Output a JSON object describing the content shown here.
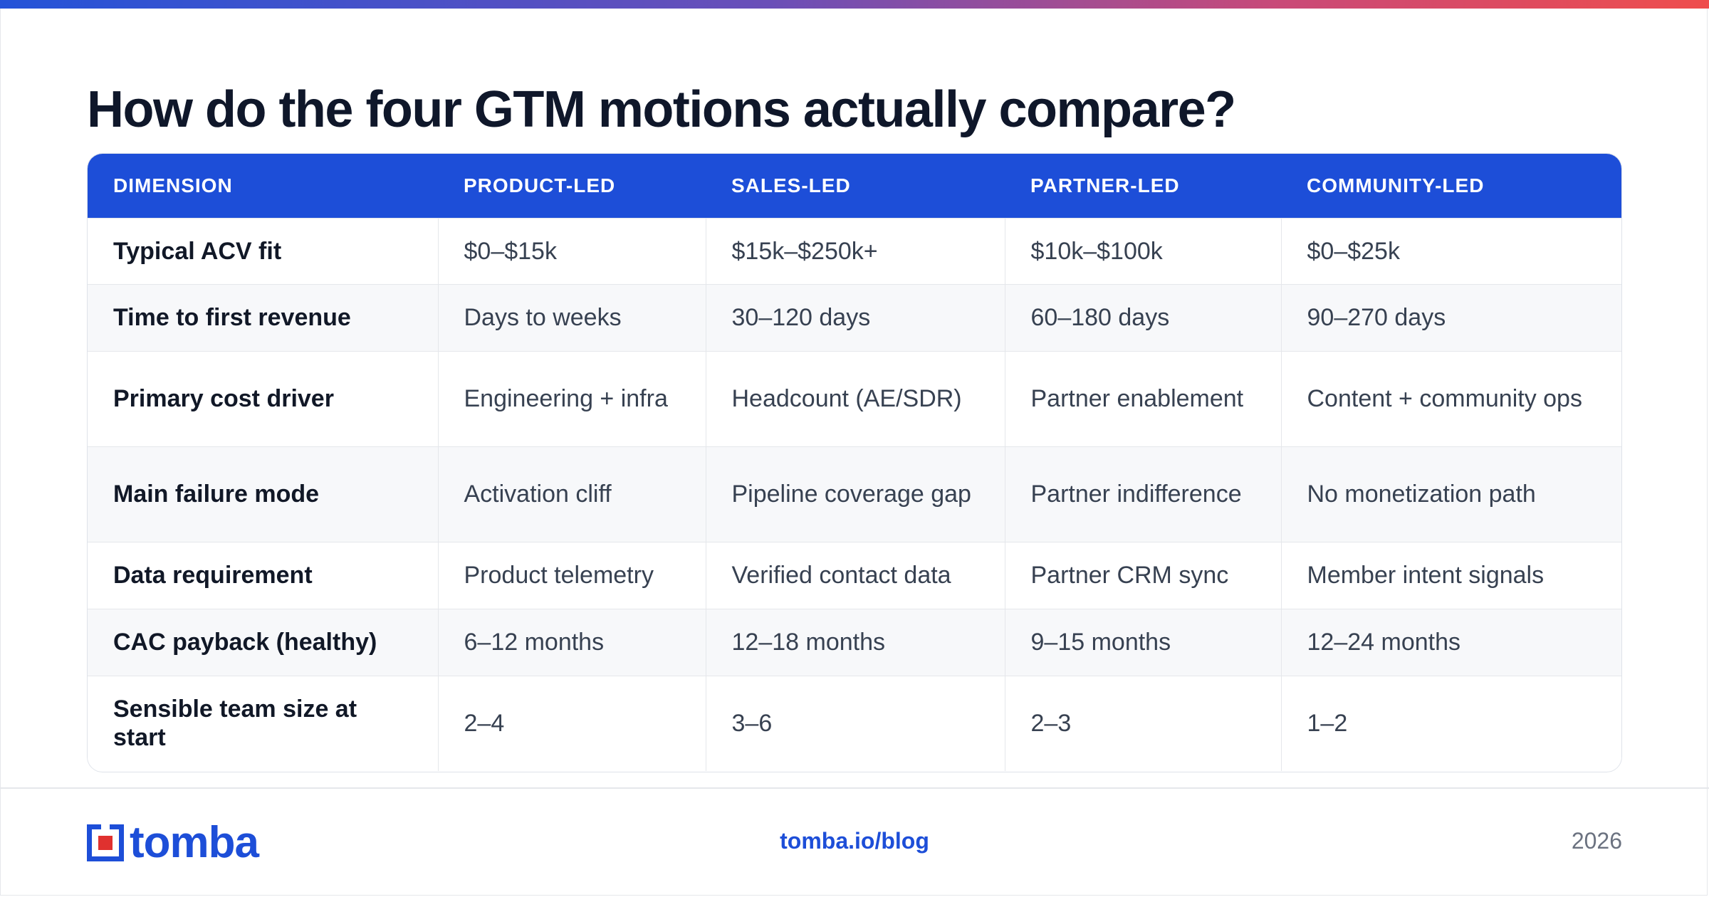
{
  "title": "How do the four GTM motions actually compare?",
  "table": {
    "headers": [
      "DIMENSION",
      "PRODUCT-LED",
      "SALES-LED",
      "PARTNER-LED",
      "COMMUNITY-LED"
    ],
    "rows": [
      [
        "Typical ACV fit",
        "$0–$15k",
        "$15k–$250k+",
        "$10k–$100k",
        "$0–$25k"
      ],
      [
        "Time to first revenue",
        "Days to weeks",
        "30–120 days",
        "60–180 days",
        "90–270 days"
      ],
      [
        "Primary cost driver",
        "Engineering + infra",
        "Headcount (AE/SDR)",
        "Partner enablement",
        "Content + community ops"
      ],
      [
        "Main failure mode",
        "Activation cliff",
        "Pipeline coverage gap",
        "Partner indifference",
        "No monetization path"
      ],
      [
        "Data requirement",
        "Product telemetry",
        "Verified contact data",
        "Partner CRM sync",
        "Member intent signals"
      ],
      [
        "CAC payback (healthy)",
        "6–12 months",
        "12–18 months",
        "9–15 months",
        "12–24 months"
      ],
      [
        "Sensible team size at start",
        "2–4",
        "3–6",
        "2–3",
        "1–2"
      ]
    ]
  },
  "footer": {
    "logo_text": "tomba",
    "link": "tomba.io/blog",
    "year": "2026"
  },
  "colors": {
    "accent": "#1d4ed8",
    "logo_red": "#e0312f",
    "gradient": [
      "#2453d8",
      "#ef4c4c"
    ]
  },
  "icons": [
    "tomba-logo-icon"
  ]
}
